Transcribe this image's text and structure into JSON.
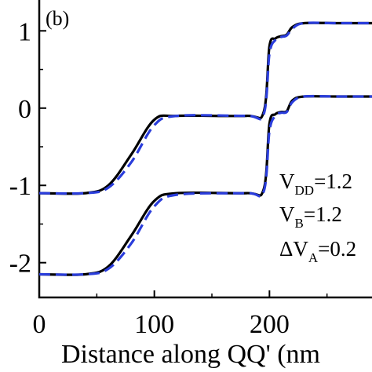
{
  "chart_data": {
    "type": "line",
    "panel_label": "(b)",
    "xlabel": "Distance along QQ' (nm",
    "ylabel": "",
    "xlim": [
      0,
      300
    ],
    "ylim": [
      -2.45,
      1.45
    ],
    "x_ticks": [
      0,
      100,
      200
    ],
    "y_ticks": [
      1,
      0,
      -1,
      -2
    ],
    "x_tick_labels": [
      "0",
      "100",
      "200"
    ],
    "y_tick_labels": [
      "1",
      "0",
      "-1",
      "-2"
    ],
    "annotations": [
      {
        "prefix": "V",
        "sub": "DD",
        "suffix": "=1.2"
      },
      {
        "prefix": "V",
        "sub": "B",
        "suffix": "=1.2"
      },
      {
        "prefix": "ΔV",
        "sub": "A",
        "suffix": "=0.2"
      }
    ],
    "series": [
      {
        "style": "solid",
        "color": "#000000",
        "x": [
          0,
          40,
          60,
          80,
          100,
          120,
          180,
          195,
          200,
          205,
          210,
          215,
          220,
          230,
          260,
          300
        ],
        "y": [
          -1.1,
          -1.1,
          -1.0,
          -0.6,
          -0.15,
          -0.1,
          -0.1,
          -0.05,
          0.8,
          0.9,
          0.93,
          0.95,
          1.05,
          1.1,
          1.1,
          1.1
        ]
      },
      {
        "style": "dashed",
        "color": "#2a3ddb",
        "x": [
          0,
          40,
          60,
          80,
          100,
          120,
          180,
          195,
          200,
          205,
          210,
          215,
          220,
          230,
          260,
          300
        ],
        "y": [
          -1.1,
          -1.1,
          -1.03,
          -0.7,
          -0.22,
          -0.1,
          -0.1,
          -0.08,
          0.7,
          0.88,
          0.92,
          0.94,
          1.03,
          1.1,
          1.1,
          1.1
        ]
      },
      {
        "style": "solid",
        "color": "#000000",
        "x": [
          0,
          40,
          60,
          80,
          100,
          120,
          180,
          195,
          200,
          205,
          210,
          215,
          220,
          230,
          260,
          300
        ],
        "y": [
          -2.15,
          -2.15,
          -2.05,
          -1.65,
          -1.2,
          -1.1,
          -1.1,
          -1.05,
          -0.2,
          -0.08,
          -0.05,
          -0.04,
          0.1,
          0.15,
          0.15,
          0.15
        ]
      },
      {
        "style": "dashed",
        "color": "#2a3ddb",
        "x": [
          0,
          40,
          60,
          80,
          100,
          120,
          180,
          195,
          200,
          205,
          210,
          215,
          220,
          230,
          260,
          300
        ],
        "y": [
          -2.15,
          -2.15,
          -2.08,
          -1.75,
          -1.27,
          -1.12,
          -1.1,
          -1.08,
          -0.3,
          -0.1,
          -0.06,
          -0.05,
          0.08,
          0.15,
          0.15,
          0.15
        ]
      }
    ]
  }
}
